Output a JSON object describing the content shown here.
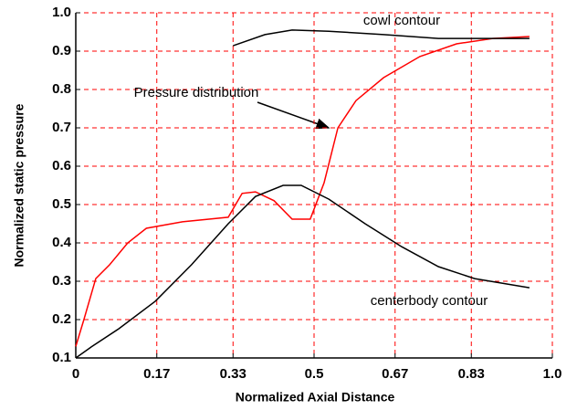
{
  "chart_data": {
    "type": "line",
    "x_label": "Normalized Axial Distance",
    "y_label": "Normalized static pressure",
    "annotations": [
      "cowl contour",
      "Pressure distribution",
      "centerbody contour"
    ],
    "xlim": [
      0,
      1.0
    ],
    "xticks": [
      0,
      0.17,
      0.33,
      0.5,
      0.67,
      0.83,
      {
        "value": 1.0,
        "label": "1.0"
      }
    ],
    "ylim": [
      0.1,
      1.0
    ],
    "yticks": [
      0.1,
      0.2,
      0.3,
      0.4,
      0.5,
      0.6,
      0.7,
      0.8,
      0.9,
      {
        "value": 1.0,
        "label": "1.0"
      }
    ],
    "grid": true,
    "series": [
      {
        "name": "Pressure distribution",
        "color": "#ff0000",
        "x": [
          0,
          0.017,
          0.042,
          0.071,
          0.109,
          0.148,
          0.224,
          0.32,
          0.349,
          0.377,
          0.416,
          0.454,
          0.492,
          0.521,
          0.55,
          0.588,
          0.646,
          0.722,
          0.799,
          0.875,
          0.952
        ],
        "values": [
          0.13,
          0.2,
          0.307,
          0.343,
          0.4,
          0.438,
          0.455,
          0.467,
          0.529,
          0.533,
          0.51,
          0.462,
          0.462,
          0.557,
          0.7,
          0.771,
          0.831,
          0.886,
          0.919,
          0.933,
          0.938
        ]
      },
      {
        "name": "cowl contour",
        "color": "#000000",
        "x": [
          0.33,
          0.397,
          0.454,
          0.531,
          0.646,
          0.761,
          0.952
        ],
        "values": [
          0.914,
          0.943,
          0.955,
          0.952,
          0.943,
          0.933,
          0.933
        ]
      },
      {
        "name": "centerbody contour",
        "color": "#000000",
        "x": [
          0,
          0.033,
          0.09,
          0.167,
          0.243,
          0.32,
          0.377,
          0.435,
          0.473,
          0.531,
          0.607,
          0.684,
          0.761,
          0.837,
          0.952
        ],
        "values": [
          0.1,
          0.129,
          0.176,
          0.248,
          0.343,
          0.45,
          0.521,
          0.55,
          0.55,
          0.514,
          0.45,
          0.39,
          0.338,
          0.307,
          0.283
        ]
      }
    ]
  }
}
